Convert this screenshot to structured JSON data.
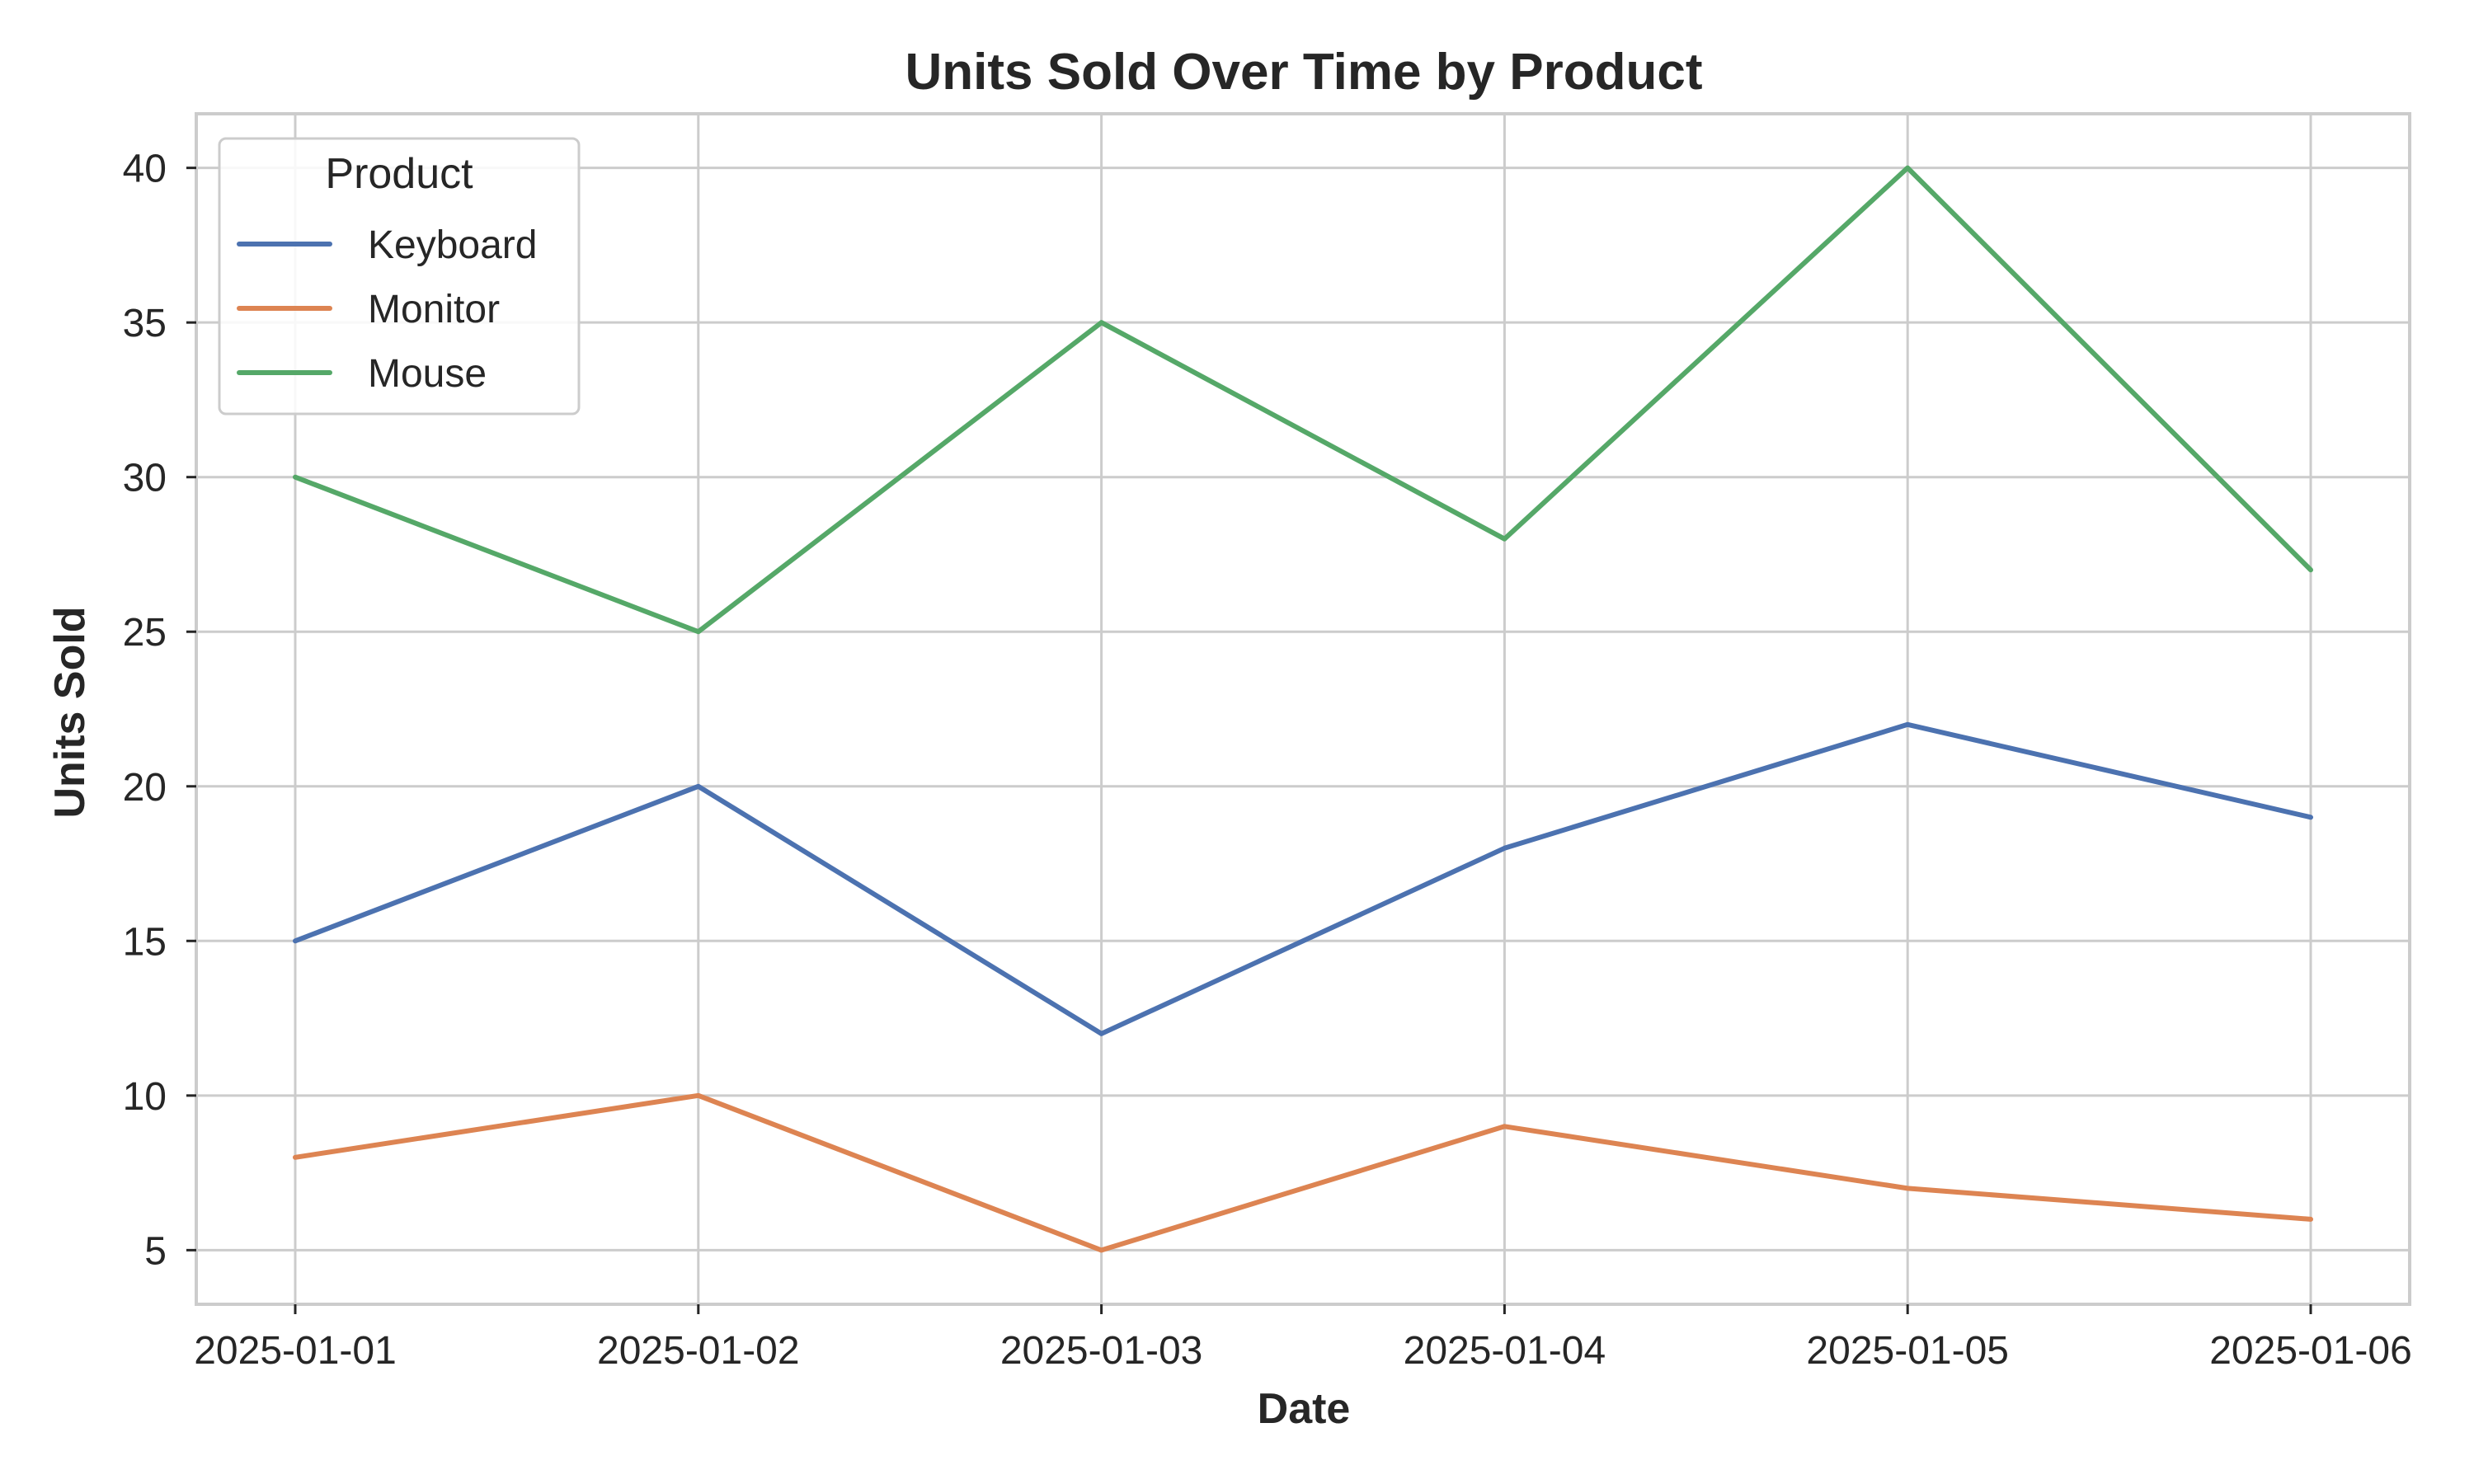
{
  "chart_data": {
    "type": "line",
    "title": "Units Sold Over Time by Product",
    "xlabel": "Date",
    "ylabel": "Units Sold",
    "x": [
      "2025-01-01",
      "2025-01-02",
      "2025-01-03",
      "2025-01-04",
      "2025-01-05",
      "2025-01-06"
    ],
    "ylim": [
      3.25,
      41.75
    ],
    "yticks": [
      5,
      10,
      15,
      20,
      25,
      30,
      35,
      40
    ],
    "grid": true,
    "legend": {
      "title": "Product",
      "placement": "top-left"
    },
    "series": [
      {
        "name": "Keyboard",
        "color": "#4c72b0",
        "values": [
          15,
          20,
          12,
          18,
          22,
          19
        ]
      },
      {
        "name": "Monitor",
        "color": "#dd8452",
        "values": [
          8,
          10,
          5,
          9,
          7,
          6
        ]
      },
      {
        "name": "Mouse",
        "color": "#55a868",
        "values": [
          30,
          25,
          35,
          28,
          40,
          27
        ]
      }
    ]
  }
}
